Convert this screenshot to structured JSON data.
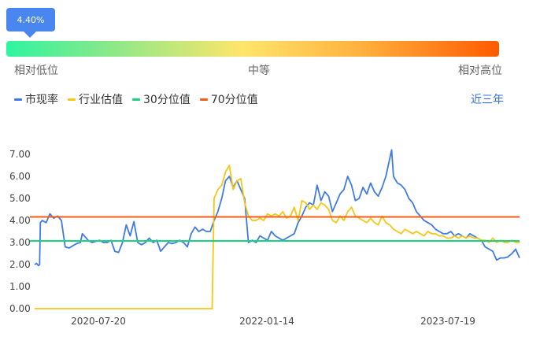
{
  "indicator": {
    "value_label": "4.40%"
  },
  "gauge": {
    "low_label": "相对低位",
    "mid_label": "中等",
    "high_label": "相对高位"
  },
  "period_label": "近三年",
  "colors": {
    "pe": "#3f7be6",
    "industry": "#f7c614",
    "p30": "#19d37f",
    "p70": "#ff5a14",
    "bubble": "#4a86f0"
  },
  "chart_data": {
    "type": "line",
    "title": "",
    "xlabel": "",
    "ylabel": "",
    "ylim": [
      0,
      7.5
    ],
    "yticks": [
      "0.00",
      "1.00",
      "2.00",
      "3.00",
      "4.00",
      "5.00",
      "6.00",
      "7.00"
    ],
    "xtick_labels": [
      "2020-07-20",
      "2022-01-14",
      "2023-07-19"
    ],
    "legend": [
      "市现率",
      "行业估值",
      "30分位值",
      "70分位值"
    ],
    "series": [
      {
        "name": "市现率",
        "key": "pe",
        "points": [
          [
            0,
            2.0
          ],
          [
            0.5,
            2.05
          ],
          [
            1,
            1.95
          ],
          [
            1.3,
            2.0
          ],
          [
            1.5,
            3.9
          ],
          [
            2,
            4.0
          ],
          [
            3,
            3.9
          ],
          [
            4,
            4.3
          ],
          [
            5,
            4.1
          ],
          [
            6,
            4.2
          ],
          [
            7,
            4.0
          ],
          [
            8,
            2.8
          ],
          [
            9,
            2.75
          ],
          [
            10,
            2.85
          ],
          [
            11,
            2.95
          ],
          [
            12,
            3.0
          ],
          [
            12.5,
            3.4
          ],
          [
            13,
            3.3
          ],
          [
            14,
            3.1
          ],
          [
            15,
            3.0
          ],
          [
            16,
            3.05
          ],
          [
            17,
            3.1
          ],
          [
            18,
            3.0
          ],
          [
            19,
            3.0
          ],
          [
            20,
            3.1
          ],
          [
            21,
            2.6
          ],
          [
            22,
            2.55
          ],
          [
            23,
            3.0
          ],
          [
            24,
            3.8
          ],
          [
            25,
            3.3
          ],
          [
            26,
            3.95
          ],
          [
            27,
            3.0
          ],
          [
            28,
            2.9
          ],
          [
            29,
            3.0
          ],
          [
            30,
            3.2
          ],
          [
            31,
            3.0
          ],
          [
            32,
            3.1
          ],
          [
            33,
            2.6
          ],
          [
            34,
            2.8
          ],
          [
            35,
            3.0
          ],
          [
            36,
            2.95
          ],
          [
            37,
            3.0
          ],
          [
            38,
            3.1
          ],
          [
            39,
            3.0
          ],
          [
            40,
            2.8
          ],
          [
            41,
            3.4
          ],
          [
            42,
            3.7
          ],
          [
            43,
            3.5
          ],
          [
            44,
            3.6
          ],
          [
            45,
            3.5
          ],
          [
            46,
            3.5
          ],
          [
            47,
            4.0
          ],
          [
            48,
            4.4
          ],
          [
            49,
            5.0
          ],
          [
            50,
            5.8
          ],
          [
            51,
            6.0
          ],
          [
            52,
            5.5
          ],
          [
            53,
            5.8
          ],
          [
            54,
            5.4
          ],
          [
            55,
            5.0
          ],
          [
            56,
            3.0
          ],
          [
            57,
            3.1
          ],
          [
            58,
            3.0
          ],
          [
            59,
            3.3
          ],
          [
            60,
            3.2
          ],
          [
            61,
            3.1
          ],
          [
            62,
            3.5
          ],
          [
            63,
            3.3
          ],
          [
            64,
            3.2
          ],
          [
            65,
            3.1
          ],
          [
            66,
            3.2
          ],
          [
            67,
            3.3
          ],
          [
            68,
            3.4
          ],
          [
            69,
            3.9
          ],
          [
            70,
            4.2
          ],
          [
            71,
            4.6
          ],
          [
            72,
            4.8
          ],
          [
            73,
            4.7
          ],
          [
            74,
            5.6
          ],
          [
            75,
            4.9
          ],
          [
            76,
            5.3
          ],
          [
            77,
            5.1
          ],
          [
            78,
            4.4
          ],
          [
            79,
            4.8
          ],
          [
            80,
            5.2
          ],
          [
            81,
            5.4
          ],
          [
            82,
            6.0
          ],
          [
            83,
            5.6
          ],
          [
            84,
            4.9
          ],
          [
            85,
            5.0
          ],
          [
            86,
            5.5
          ],
          [
            87,
            5.2
          ],
          [
            88,
            5.7
          ],
          [
            89,
            5.3
          ],
          [
            90,
            5.1
          ],
          [
            91,
            5.5
          ],
          [
            92,
            6.0
          ],
          [
            93,
            6.8
          ],
          [
            93.5,
            7.2
          ],
          [
            94,
            6.0
          ],
          [
            95,
            5.7
          ],
          [
            96,
            5.6
          ],
          [
            97,
            5.4
          ],
          [
            98,
            5.0
          ],
          [
            99,
            4.8
          ],
          [
            100,
            4.4
          ],
          [
            101,
            4.2
          ],
          [
            102,
            4.0
          ],
          [
            103,
            3.9
          ],
          [
            104,
            3.8
          ],
          [
            105,
            3.6
          ],
          [
            106,
            3.5
          ],
          [
            107,
            3.4
          ],
          [
            108,
            3.4
          ],
          [
            109,
            3.5
          ],
          [
            110,
            3.3
          ],
          [
            111,
            3.4
          ],
          [
            112,
            3.3
          ],
          [
            113,
            3.2
          ],
          [
            114,
            3.4
          ],
          [
            115,
            3.3
          ],
          [
            116,
            3.2
          ],
          [
            117,
            3.1
          ],
          [
            118,
            2.8
          ],
          [
            119,
            2.7
          ],
          [
            120,
            2.6
          ],
          [
            121,
            2.2
          ],
          [
            122,
            2.3
          ],
          [
            123,
            2.3
          ],
          [
            124,
            2.35
          ],
          [
            125,
            2.5
          ],
          [
            126,
            2.7
          ],
          [
            127,
            2.3
          ]
        ]
      },
      {
        "name": "行业估值",
        "key": "industry",
        "points": [
          [
            0,
            0.0
          ],
          [
            46.5,
            0.0
          ],
          [
            47,
            5.0
          ],
          [
            48,
            5.4
          ],
          [
            49,
            5.6
          ],
          [
            50,
            6.2
          ],
          [
            51,
            6.5
          ],
          [
            52,
            5.4
          ],
          [
            53,
            5.8
          ],
          [
            54,
            5.9
          ],
          [
            55,
            4.8
          ],
          [
            56,
            4.2
          ],
          [
            57,
            4.0
          ],
          [
            58,
            4.0
          ],
          [
            59,
            4.1
          ],
          [
            60,
            4.0
          ],
          [
            61,
            4.3
          ],
          [
            62,
            4.2
          ],
          [
            63,
            4.3
          ],
          [
            64,
            4.2
          ],
          [
            65,
            4.4
          ],
          [
            66,
            4.1
          ],
          [
            67,
            4.2
          ],
          [
            68,
            4.6
          ],
          [
            69,
            4.0
          ],
          [
            70,
            4.9
          ],
          [
            71,
            4.8
          ],
          [
            72,
            4.5
          ],
          [
            73,
            4.7
          ],
          [
            74,
            4.5
          ],
          [
            75,
            4.8
          ],
          [
            76,
            4.7
          ],
          [
            77,
            4.5
          ],
          [
            78,
            4.0
          ],
          [
            79,
            3.9
          ],
          [
            80,
            4.2
          ],
          [
            81,
            4.0
          ],
          [
            82,
            4.4
          ],
          [
            83,
            4.6
          ],
          [
            84,
            4.2
          ],
          [
            85,
            4.1
          ],
          [
            86,
            4.0
          ],
          [
            87,
            3.9
          ],
          [
            88,
            4.1
          ],
          [
            89,
            3.9
          ],
          [
            90,
            3.8
          ],
          [
            91,
            4.2
          ],
          [
            92,
            3.9
          ],
          [
            93,
            3.8
          ],
          [
            94,
            3.6
          ],
          [
            95,
            3.5
          ],
          [
            96,
            3.4
          ],
          [
            97,
            3.6
          ],
          [
            98,
            3.5
          ],
          [
            99,
            3.4
          ],
          [
            100,
            3.5
          ],
          [
            101,
            3.4
          ],
          [
            102,
            3.3
          ],
          [
            103,
            3.5
          ],
          [
            104,
            3.4
          ],
          [
            105,
            3.4
          ],
          [
            106,
            3.3
          ],
          [
            107,
            3.3
          ],
          [
            108,
            3.2
          ],
          [
            109,
            3.2
          ],
          [
            110,
            3.3
          ],
          [
            111,
            3.2
          ],
          [
            112,
            3.3
          ],
          [
            113,
            3.2
          ],
          [
            114,
            3.3
          ],
          [
            115,
            3.2
          ],
          [
            116,
            3.2
          ],
          [
            117,
            3.1
          ],
          [
            118,
            3.1
          ],
          [
            119,
            3.0
          ],
          [
            120,
            3.2
          ],
          [
            121,
            3.0
          ],
          [
            122,
            3.1
          ],
          [
            123,
            3.0
          ],
          [
            124,
            3.0
          ],
          [
            125,
            3.1
          ],
          [
            126,
            3.0
          ],
          [
            127,
            3.0
          ]
        ]
      }
    ],
    "reference_lines": [
      {
        "name": "30分位值",
        "key": "p30",
        "value": 3.07
      },
      {
        "name": "70分位值",
        "key": "p70",
        "value": 4.16
      }
    ]
  }
}
